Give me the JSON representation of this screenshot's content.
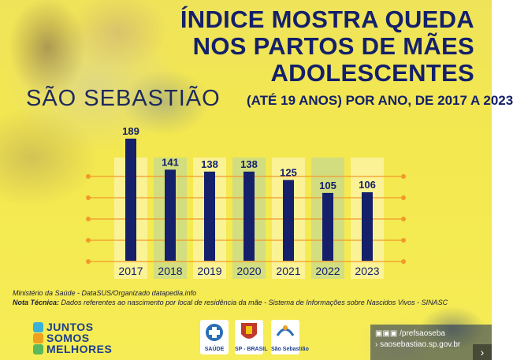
{
  "header": {
    "title_lines": [
      "ÍNDICE MOSTRA QUEDA",
      "NOS PARTOS DE MÃES",
      "ADOLESCENTES"
    ],
    "city": "SÃO SEBASTIÃO",
    "subtitle": "(ATÉ 19 ANOS) POR ANO, DE 2017 A 2023"
  },
  "chart_data": {
    "type": "bar",
    "title": "ÍNDICE MOSTRA QUEDA NOS PARTOS DE MÃES ADOLESCENTES",
    "subtitle": "(ATÉ 19 ANOS) POR ANO, DE 2017 A 2023",
    "categories": [
      "2017",
      "2018",
      "2019",
      "2020",
      "2021",
      "2022",
      "2023"
    ],
    "values": [
      189,
      141,
      138,
      138,
      125,
      105,
      106
    ],
    "ylim": [
      0,
      200
    ],
    "grid": true,
    "bar_color": "#14206a",
    "highlight_color": "#7fb8c9",
    "label_color": "#14206a"
  },
  "footer": {
    "source": "Ministério da Saúde - DataSUS/Organizado datapedia.info",
    "note_label": "Nota Técnica:",
    "note_text": "Dados referentes ao nascimento por local de residência da mãe - Sistema de Informações sobre Nascidos Vivos - SINASC",
    "slogan": [
      "JUNTOS",
      "SOMOS",
      "MELHORES"
    ],
    "logos": [
      "SAÚDE",
      "SP - BRASIL",
      "São Sebastião"
    ],
    "social_handle": "/prefsaoseba",
    "website": "saosebastiao.sp.gov.br"
  },
  "colors": {
    "background": "#f3e84f",
    "title": "#14206a",
    "gridline": "#f09a2a"
  },
  "icons": [
    "facebook-icon",
    "instagram-icon",
    "youtube-icon",
    "arrow-right-icon",
    "next-arrow-icon"
  ]
}
